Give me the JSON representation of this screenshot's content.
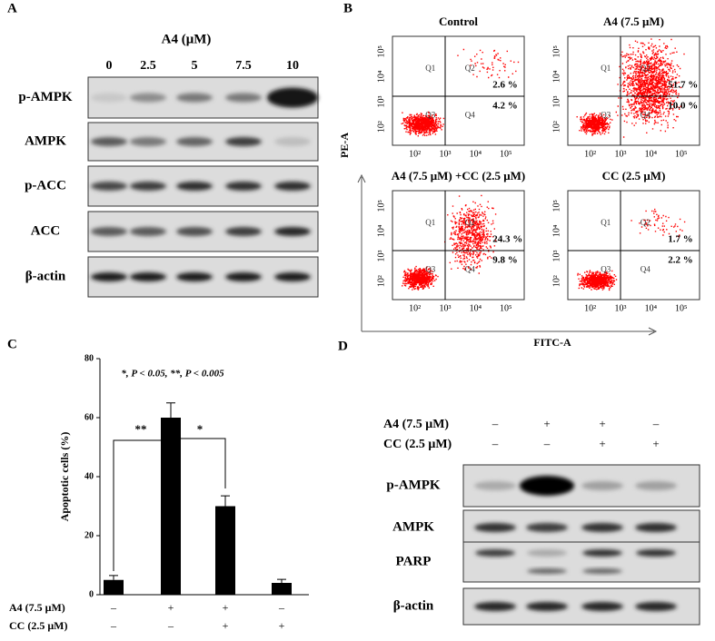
{
  "panel_a": {
    "label": "A",
    "treatment": "A4 (μM)",
    "doses": [
      "0",
      "2.5",
      "5",
      "7.5",
      "10"
    ],
    "rows": [
      "p-AMPK",
      "AMPK",
      "p-ACC",
      "ACC",
      "β-actin"
    ]
  },
  "panel_b": {
    "label": "B",
    "y_axis": "PE-A",
    "x_axis": "FITC-A",
    "quadrants": [
      "Q1",
      "Q2",
      "Q3",
      "Q4"
    ],
    "ticks": [
      "10²",
      "10³",
      "10⁴",
      "10⁵"
    ],
    "plots": [
      {
        "title": "Control",
        "upper_right": "2.6 %",
        "lower_right": "4.2 %"
      },
      {
        "title": "A4 (7.5 μM)",
        "upper_right": "51.7 %",
        "lower_right": "10.0 %"
      },
      {
        "title": "A4 (7.5 μM) +CC (2.5 μM)",
        "upper_right": "24.3 %",
        "lower_right": "9.8 %"
      },
      {
        "title": "CC (2.5 μM)",
        "upper_right": "1.7 %",
        "lower_right": "2.2 %"
      }
    ]
  },
  "panel_c_label": "C",
  "chart_data": {
    "type": "bar",
    "title": "*, P < 0.05, **, P < 0.005",
    "y_label": "Apoptotic cells (%)",
    "categories": [
      null,
      null,
      null,
      null
    ],
    "values": [
      5,
      60,
      30,
      4
    ],
    "errors": [
      1.5,
      5,
      3.5,
      1.2
    ],
    "color": "#000000",
    "ylim": [
      0,
      80
    ],
    "yticks": [
      0,
      20,
      40,
      60,
      80
    ],
    "conditions": [
      {
        "label": "A4 (7.5 μM)",
        "signs": [
          "–",
          "+",
          "+",
          "–"
        ]
      },
      {
        "label": "CC (2.5 μM)",
        "signs": [
          "–",
          "–",
          "+",
          "+"
        ]
      }
    ],
    "annotations": [
      "**",
      "*"
    ]
  },
  "panel_d": {
    "label": "D",
    "conditions": [
      {
        "label": "A4 (7.5 μM)",
        "signs": [
          "–",
          "+",
          "+",
          "–"
        ]
      },
      {
        "label": "CC (2.5 μM)",
        "signs": [
          "–",
          "–",
          "+",
          "+"
        ]
      }
    ],
    "rows": [
      "p-AMPK",
      "AMPK",
      "PARP",
      "β-actin"
    ]
  }
}
